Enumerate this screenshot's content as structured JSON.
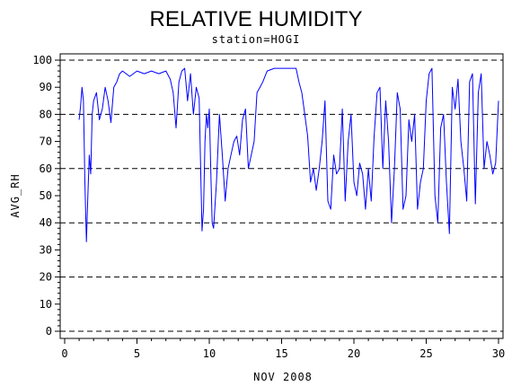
{
  "chart_data": {
    "type": "line",
    "title": "RELATIVE HUMIDITY",
    "subtitle": "station=HOGI",
    "xlabel": "NOV 2008",
    "ylabel": "AVG_RH",
    "xlim": [
      0,
      30
    ],
    "ylim": [
      0,
      100
    ],
    "xticks": [
      0,
      5,
      10,
      15,
      20,
      25,
      30
    ],
    "yticks": [
      0,
      10,
      20,
      30,
      40,
      50,
      60,
      70,
      80,
      90,
      100
    ],
    "dashed_reference_lines": [
      0,
      20,
      40,
      60,
      80,
      100
    ],
    "line_color": "#0000ff",
    "series": [
      {
        "x": [
          1.0,
          1.1,
          1.2,
          1.3,
          1.4,
          1.5,
          1.6,
          1.7,
          1.8,
          1.9,
          2.0,
          2.2,
          2.4,
          2.6,
          2.8,
          3.0,
          3.2,
          3.4,
          3.6,
          3.8,
          4.0,
          4.5,
          5.0,
          5.5,
          6.0,
          6.5,
          7.0,
          7.3,
          7.5,
          7.7,
          7.9,
          8.1,
          8.3,
          8.5,
          8.7,
          8.9,
          9.1,
          9.3,
          9.5,
          9.6,
          9.7,
          9.8,
          9.9,
          10.0,
          10.1,
          10.2,
          10.3,
          10.5,
          10.7,
          10.9,
          11.1,
          11.3,
          11.5,
          11.7,
          11.9,
          12.1,
          12.3,
          12.5,
          12.7,
          12.9,
          13.1,
          13.3,
          13.5,
          13.7,
          14.0,
          14.5,
          15.0,
          15.5,
          16.0,
          16.2,
          16.4,
          16.6,
          16.8,
          17.0,
          17.2,
          17.4,
          17.6,
          17.8,
          18.0,
          18.2,
          18.4,
          18.6,
          18.8,
          19.0,
          19.2,
          19.4,
          19.6,
          19.8,
          20.0,
          20.2,
          20.4,
          20.6,
          20.8,
          21.0,
          21.2,
          21.4,
          21.6,
          21.8,
          22.0,
          22.2,
          22.4,
          22.6,
          22.8,
          23.0,
          23.2,
          23.4,
          23.6,
          23.8,
          24.0,
          24.2,
          24.4,
          24.6,
          24.8,
          25.0,
          25.2,
          25.4,
          25.6,
          25.8,
          26.0,
          26.2,
          26.4,
          26.6,
          26.8,
          27.0,
          27.2,
          27.4,
          27.6,
          27.8,
          28.0,
          28.2,
          28.4,
          28.6,
          28.8,
          29.0,
          29.2,
          29.4,
          29.6,
          29.8,
          30.0
        ],
        "values": [
          78,
          83,
          90,
          85,
          55,
          33,
          50,
          65,
          58,
          80,
          85,
          88,
          78,
          82,
          90,
          85,
          77,
          90,
          92,
          95,
          96,
          94,
          96,
          95,
          96,
          95,
          96,
          93,
          88,
          75,
          92,
          96,
          97,
          85,
          95,
          80,
          90,
          86,
          37,
          45,
          70,
          80,
          75,
          82,
          60,
          40,
          38,
          55,
          80,
          65,
          48,
          60,
          65,
          70,
          72,
          65,
          78,
          82,
          60,
          65,
          70,
          88,
          90,
          92,
          96,
          97,
          97,
          97,
          97,
          92,
          88,
          80,
          72,
          55,
          60,
          52,
          60,
          70,
          85,
          48,
          45,
          65,
          58,
          60,
          82,
          48,
          70,
          80,
          55,
          50,
          62,
          58,
          45,
          60,
          48,
          72,
          88,
          90,
          60,
          85,
          70,
          40,
          60,
          88,
          82,
          45,
          50,
          78,
          70,
          80,
          45,
          55,
          60,
          85,
          95,
          97,
          50,
          40,
          75,
          80,
          55,
          36,
          90,
          82,
          93,
          70,
          60,
          48,
          92,
          95,
          47,
          88,
          95,
          60,
          70,
          65,
          58,
          62,
          85
        ]
      }
    ]
  }
}
